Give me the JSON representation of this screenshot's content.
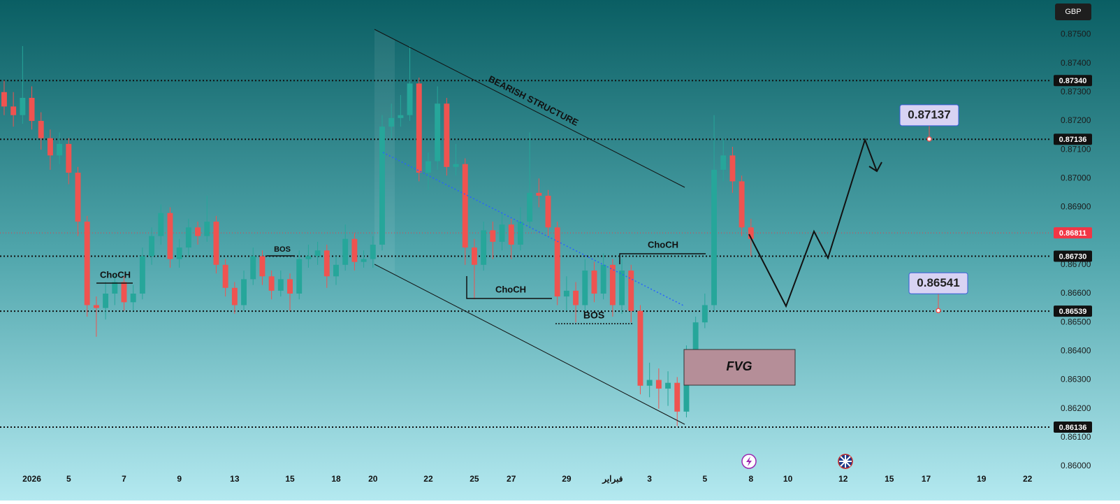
{
  "chart_data": {
    "type": "candlestick",
    "currency": "GBP",
    "up_color": "#26a69a",
    "down_color": "#ef5350",
    "ylim": [
      0.8592,
      0.8762
    ],
    "yticks": [
      {
        "value": 0.875,
        "label": "0.87500"
      },
      {
        "value": 0.874,
        "label": "0.87400"
      },
      {
        "value": 0.873,
        "label": "0.87300"
      },
      {
        "value": 0.872,
        "label": "0.87200"
      },
      {
        "value": 0.871,
        "label": "0.87100"
      },
      {
        "value": 0.87,
        "label": "0.87000"
      },
      {
        "value": 0.869,
        "label": "0.86900"
      },
      {
        "value": 0.868,
        "label": "0.86800"
      },
      {
        "value": 0.867,
        "label": "0.86700"
      },
      {
        "value": 0.866,
        "label": "0.86600"
      },
      {
        "value": 0.865,
        "label": "0.86500"
      },
      {
        "value": 0.864,
        "label": "0.86400"
      },
      {
        "value": 0.863,
        "label": "0.86300"
      },
      {
        "value": 0.862,
        "label": "0.86200"
      },
      {
        "value": 0.861,
        "label": "0.86100"
      },
      {
        "value": 0.86,
        "label": "0.86000"
      }
    ],
    "xlim": [
      -0.45,
      113.6
    ],
    "xticks": [
      {
        "value": 3,
        "label": "2026"
      },
      {
        "value": 7,
        "label": "5"
      },
      {
        "value": 13,
        "label": "7"
      },
      {
        "value": 19,
        "label": "9"
      },
      {
        "value": 25,
        "label": "13"
      },
      {
        "value": 31,
        "label": "15"
      },
      {
        "value": 36,
        "label": "18"
      },
      {
        "value": 40,
        "label": "20"
      },
      {
        "value": 46,
        "label": "22"
      },
      {
        "value": 51,
        "label": "25"
      },
      {
        "value": 55,
        "label": "27"
      },
      {
        "value": 61,
        "label": "29"
      },
      {
        "value": 66,
        "label": "فبراير"
      },
      {
        "value": 70,
        "label": "3"
      },
      {
        "value": 76,
        "label": "5"
      },
      {
        "value": 81,
        "label": "8"
      },
      {
        "value": 85,
        "label": "10"
      },
      {
        "value": 91,
        "label": "12"
      },
      {
        "value": 96,
        "label": "15"
      },
      {
        "value": 100,
        "label": "17"
      },
      {
        "value": 106,
        "label": "19"
      },
      {
        "value": 111,
        "label": "22"
      }
    ],
    "levels": [
      {
        "value": 0.8734,
        "label": "0.87340"
      },
      0.87136,
      {
        "value": 0.8673,
        "label": "0.86730"
      },
      0.86539,
      0.86136
    ],
    "last_price": 0.86811,
    "callouts": [
      0.87137,
      0.86541
    ],
    "annotations": [
      "BEARISH STRUCTURE",
      "ChoCH",
      "BOS",
      "ChoCH",
      "BOS",
      "ChoCH",
      "FVG"
    ],
    "candles": [
      [
        0.873,
        0.8734,
        0.8722,
        0.8725
      ],
      [
        0.8725,
        0.873,
        0.8718,
        0.8722
      ],
      [
        0.8722,
        0.8746,
        0.8719,
        0.8728
      ],
      [
        0.8728,
        0.8732,
        0.8717,
        0.872
      ],
      [
        0.872,
        0.8723,
        0.871,
        0.8714
      ],
      [
        0.8714,
        0.8717,
        0.8703,
        0.8708
      ],
      [
        0.8708,
        0.8716,
        0.8705,
        0.8712
      ],
      [
        0.8712,
        0.8714,
        0.8698,
        0.8702
      ],
      [
        0.8702,
        0.8704,
        0.868,
        0.8685
      ],
      [
        0.8685,
        0.8687,
        0.8652,
        0.8656
      ],
      [
        0.8656,
        0.8659,
        0.8645,
        0.8655
      ],
      [
        0.8655,
        0.8664,
        0.8651,
        0.866
      ],
      [
        0.866,
        0.8667,
        0.8656,
        0.8664
      ],
      [
        0.8664,
        0.8666,
        0.8654,
        0.8657
      ],
      [
        0.8657,
        0.8663,
        0.8654,
        0.866
      ],
      [
        0.866,
        0.8676,
        0.8658,
        0.8673
      ],
      [
        0.8673,
        0.8683,
        0.867,
        0.868
      ],
      [
        0.868,
        0.8691,
        0.8677,
        0.8688
      ],
      [
        0.8688,
        0.869,
        0.8669,
        0.8672
      ],
      [
        0.8672,
        0.8679,
        0.8669,
        0.8676
      ],
      [
        0.8676,
        0.8686,
        0.8673,
        0.8683
      ],
      [
        0.8683,
        0.8685,
        0.8677,
        0.868
      ],
      [
        0.868,
        0.8694,
        0.8678,
        0.8685
      ],
      [
        0.8685,
        0.8687,
        0.8667,
        0.867
      ],
      [
        0.867,
        0.8672,
        0.8659,
        0.8662
      ],
      [
        0.8662,
        0.8664,
        0.8653,
        0.8656
      ],
      [
        0.8656,
        0.8668,
        0.8654,
        0.8665
      ],
      [
        0.8665,
        0.8676,
        0.8663,
        0.8673
      ],
      [
        0.8673,
        0.8675,
        0.8663,
        0.8666
      ],
      [
        0.8666,
        0.8668,
        0.8658,
        0.8661
      ],
      [
        0.8661,
        0.8668,
        0.8659,
        0.8665
      ],
      [
        0.8665,
        0.8667,
        0.8654,
        0.866
      ],
      [
        0.866,
        0.8675,
        0.8658,
        0.8672
      ],
      [
        0.8672,
        0.8677,
        0.8669,
        0.8673
      ],
      [
        0.8673,
        0.8678,
        0.867,
        0.8675
      ],
      [
        0.8675,
        0.8677,
        0.8662,
        0.8666
      ],
      [
        0.8666,
        0.8673,
        0.8663,
        0.867
      ],
      [
        0.867,
        0.8684,
        0.8668,
        0.8679
      ],
      [
        0.8679,
        0.8681,
        0.8668,
        0.8671
      ],
      [
        0.8671,
        0.8675,
        0.8669,
        0.8672
      ],
      [
        0.8672,
        0.868,
        0.8669,
        0.8677
      ],
      [
        0.8677,
        0.8722,
        0.8675,
        0.8718
      ],
      [
        0.8718,
        0.8726,
        0.8714,
        0.8721
      ],
      [
        0.8721,
        0.8729,
        0.8718,
        0.8722
      ],
      [
        0.8722,
        0.8746,
        0.872,
        0.8733
      ],
      [
        0.8733,
        0.8735,
        0.8699,
        0.8702
      ],
      [
        0.8702,
        0.8709,
        0.8696,
        0.8706
      ],
      [
        0.8706,
        0.8732,
        0.8703,
        0.8726
      ],
      [
        0.8726,
        0.8728,
        0.8701,
        0.8704
      ],
      [
        0.8704,
        0.8712,
        0.8701,
        0.8705
      ],
      [
        0.8705,
        0.8707,
        0.867,
        0.8676
      ],
      [
        0.8676,
        0.8679,
        0.8658,
        0.867
      ],
      [
        0.867,
        0.8685,
        0.8668,
        0.8682
      ],
      [
        0.8682,
        0.8685,
        0.8672,
        0.8678
      ],
      [
        0.8678,
        0.8688,
        0.8675,
        0.8684
      ],
      [
        0.8684,
        0.8686,
        0.8672,
        0.8677
      ],
      [
        0.8677,
        0.869,
        0.8675,
        0.8685
      ],
      [
        0.8685,
        0.8716,
        0.8683,
        0.8695
      ],
      [
        0.8695,
        0.87,
        0.869,
        0.8694
      ],
      [
        0.8694,
        0.8696,
        0.868,
        0.8683
      ],
      [
        0.8683,
        0.8685,
        0.8656,
        0.8659
      ],
      [
        0.8659,
        0.8666,
        0.8654,
        0.8661
      ],
      [
        0.8661,
        0.8664,
        0.865,
        0.8656
      ],
      [
        0.8656,
        0.8672,
        0.8654,
        0.8668
      ],
      [
        0.8668,
        0.8671,
        0.8657,
        0.866
      ],
      [
        0.866,
        0.8674,
        0.8658,
        0.867
      ],
      [
        0.867,
        0.8672,
        0.8652,
        0.8656
      ],
      [
        0.8656,
        0.8672,
        0.8653,
        0.8668
      ],
      [
        0.8668,
        0.867,
        0.865,
        0.8654
      ],
      [
        0.8654,
        0.8656,
        0.8625,
        0.8628
      ],
      [
        0.8628,
        0.8636,
        0.8624,
        0.863
      ],
      [
        0.863,
        0.8634,
        0.862,
        0.8627
      ],
      [
        0.8627,
        0.8633,
        0.8621,
        0.8629
      ],
      [
        0.8629,
        0.8631,
        0.8614,
        0.8619
      ],
      [
        0.8619,
        0.8642,
        0.8617,
        0.864
      ],
      [
        0.864,
        0.8652,
        0.8638,
        0.865
      ],
      [
        0.865,
        0.866,
        0.8648,
        0.8656
      ],
      [
        0.8656,
        0.8722,
        0.8654,
        0.8703
      ],
      [
        0.8703,
        0.8714,
        0.8699,
        0.8708
      ],
      [
        0.8708,
        0.8711,
        0.8695,
        0.8699
      ],
      [
        0.8699,
        0.8701,
        0.868,
        0.8683
      ],
      [
        0.8683,
        0.8686,
        0.8673,
        0.8679
      ]
    ]
  }
}
